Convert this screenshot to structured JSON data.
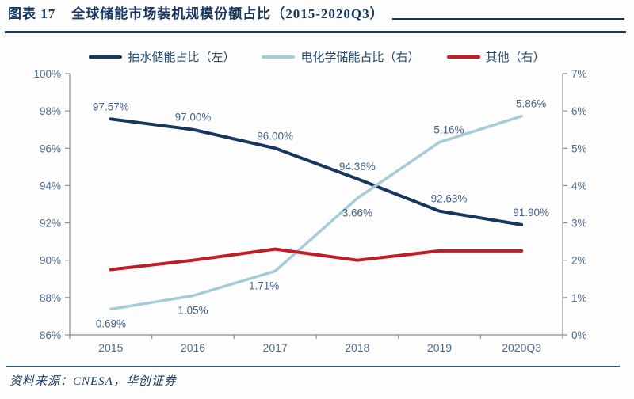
{
  "header": {
    "figure_label": "图表 17",
    "title": "全球储能市场装机规模份额占比（2015-2020Q3）"
  },
  "source_text": "资料来源：CNESA，华创证券",
  "colors": {
    "navy": "#17365d",
    "light_blue": "#a6cbd8",
    "red": "#bf1e24",
    "axis_line": "#8c8c8c",
    "tick_text": "#4e6d92",
    "data_label_text": "#44618a",
    "title_text": "#17375e"
  },
  "chart_data": {
    "type": "line",
    "categories": [
      "2015",
      "2016",
      "2017",
      "2018",
      "2019",
      "2020Q3"
    ],
    "series": [
      {
        "name": "抽水储能占比（左）",
        "axis": "left",
        "color": "#17365d",
        "values": [
          97.57,
          97.0,
          96.0,
          94.36,
          92.63,
          91.9
        ],
        "data_labels": [
          "97.57%",
          "97.00%",
          "96.00%",
          "94.36%",
          "92.63%",
          "91.90%"
        ],
        "label_side": [
          "above",
          "above",
          "above",
          "above",
          "above",
          "above"
        ]
      },
      {
        "name": "电化学储能占比（右）",
        "axis": "right",
        "color": "#a6cbd8",
        "values": [
          0.69,
          1.05,
          1.71,
          3.66,
          5.16,
          5.86
        ],
        "data_labels": [
          "0.69%",
          "1.05%",
          "1.71%",
          "3.66%",
          "5.16%",
          "5.86%"
        ],
        "label_side": [
          "below",
          "below",
          "below",
          "below",
          "above",
          "above"
        ]
      },
      {
        "name": "其他（右）",
        "axis": "right",
        "color": "#bf1e24",
        "values": [
          1.75,
          2.0,
          2.3,
          2.0,
          2.25,
          2.25
        ],
        "data_labels": null,
        "label_side": null
      }
    ],
    "left_axis": {
      "min": 86,
      "max": 100,
      "step": 2,
      "tick_labels": [
        "100%",
        "98%",
        "96%",
        "94%",
        "92%",
        "90%",
        "88%",
        "86%"
      ]
    },
    "right_axis": {
      "min": 0,
      "max": 7,
      "step": 1,
      "tick_labels": [
        "7%",
        "6%",
        "5%",
        "4%",
        "3%",
        "2%",
        "1%",
        "0%"
      ]
    },
    "legend_position": "top",
    "grid": false
  }
}
